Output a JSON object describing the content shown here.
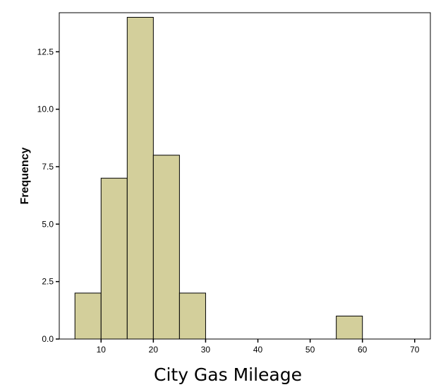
{
  "chart_data": {
    "type": "bar",
    "subtype": "histogram",
    "title": "",
    "xlabel": "City Gas Mileage",
    "ylabel": "Frequency",
    "bin_width": 5,
    "bins": [
      {
        "start": 5,
        "end": 10,
        "count": 2
      },
      {
        "start": 10,
        "end": 15,
        "count": 7
      },
      {
        "start": 15,
        "end": 20,
        "count": 14
      },
      {
        "start": 20,
        "end": 25,
        "count": 8
      },
      {
        "start": 25,
        "end": 30,
        "count": 2
      },
      {
        "start": 55,
        "end": 60,
        "count": 1
      }
    ],
    "xlim": [
      2,
      73
    ],
    "ylim": [
      0,
      14.2
    ],
    "x_ticks": [
      10,
      20,
      30,
      40,
      50,
      60,
      70
    ],
    "y_ticks": [
      0.0,
      2.5,
      5.0,
      7.5,
      10.0,
      12.5
    ],
    "x_tick_labels": [
      "10",
      "20",
      "30",
      "40",
      "50",
      "60",
      "70"
    ],
    "y_tick_labels": [
      "0.0",
      "2.5",
      "5.0",
      "7.5",
      "10.0",
      "12.5"
    ],
    "grid": false,
    "legend": "none",
    "colors": {
      "bar_fill": "#d3cf9b",
      "bar_stroke": "#000000",
      "frame": "#000000",
      "background": "#ffffff"
    }
  }
}
